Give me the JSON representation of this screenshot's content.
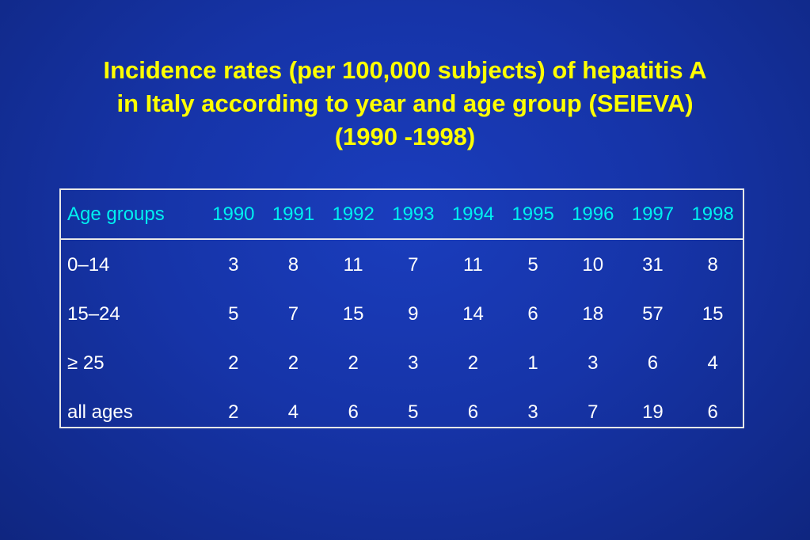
{
  "title": {
    "line1": "Incidence rates (per 100,000 subjects) of hepatitis A",
    "line2": "in Italy according to year and age group (SEIEVA)",
    "line3": "(1990 -1998)"
  },
  "colors": {
    "background": "#1634a8",
    "title": "#ffff00",
    "header_text": "#00f0f0",
    "body_text": "#ffffff",
    "border": "#e8e8e8"
  },
  "table": {
    "columns": [
      "Age groups",
      "1990",
      "1991",
      "1992",
      "1993",
      "1994",
      "1995",
      "1996",
      "1997",
      "1998"
    ],
    "rows": [
      {
        "label": "0–14",
        "values": [
          "3",
          "8",
          "11",
          "7",
          "11",
          "5",
          "10",
          "31",
          "8"
        ]
      },
      {
        "label": "15–24",
        "values": [
          "5",
          "7",
          "15",
          "9",
          "14",
          "6",
          "18",
          "57",
          "15"
        ]
      },
      {
        "label": "≥ 25",
        "values": [
          "2",
          "2",
          "2",
          "3",
          "2",
          "1",
          "3",
          "6",
          "4"
        ]
      },
      {
        "label": "all ages",
        "values": [
          "2",
          "4",
          "6",
          "5",
          "6",
          "3",
          "7",
          "19",
          "6"
        ]
      }
    ]
  }
}
